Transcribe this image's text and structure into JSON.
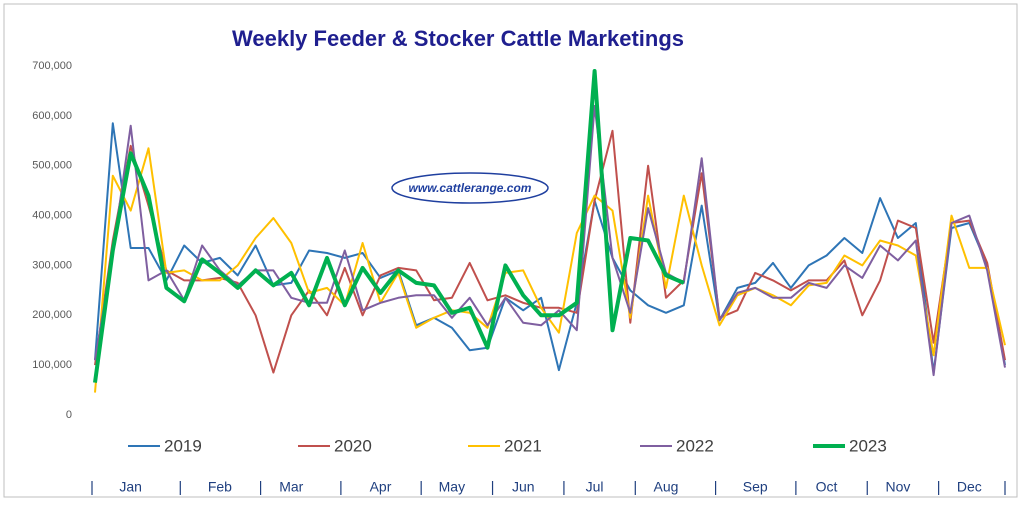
{
  "chart_data": {
    "type": "line",
    "title": "Weekly Feeder & Stocker Cattle Marketings",
    "watermark": "www.cattlerange.com",
    "categories": [
      null,
      null,
      "Jan",
      null,
      null,
      null,
      null,
      "Feb",
      null,
      null,
      null,
      "Mar",
      null,
      null,
      null,
      null,
      "Apr",
      null,
      null,
      null,
      "May",
      null,
      null,
      null,
      "Jun",
      null,
      null,
      null,
      "Jul",
      null,
      null,
      null,
      "Aug",
      null,
      null,
      null,
      null,
      "Sep",
      null,
      null,
      null,
      "Oct",
      null,
      null,
      null,
      "Nov",
      null,
      null,
      null,
      "Dec",
      null,
      null
    ],
    "ylim": [
      0,
      700000
    ],
    "yticks": [
      0,
      {
        "value": 100000,
        "label": "100,000"
      },
      {
        "value": 200000,
        "label": "200,000"
      },
      {
        "value": 300000,
        "label": "300,000"
      },
      {
        "value": 400000,
        "label": "400,000"
      },
      {
        "value": 500000,
        "label": "500,000"
      },
      {
        "value": 600000,
        "label": "600,000"
      },
      {
        "value": 700000,
        "label": "700,000"
      }
    ],
    "grid": false,
    "series": [
      {
        "name": "2019",
        "color": "#2e75b6",
        "values": [
          110000,
          585000,
          335000,
          335000,
          270000,
          340000,
          305000,
          315000,
          280000,
          340000,
          260000,
          265000,
          330000,
          325000,
          315000,
          325000,
          275000,
          290000,
          180000,
          195000,
          175000,
          130000,
          135000,
          235000,
          210000,
          235000,
          90000,
          225000,
          430000,
          315000,
          250000,
          220000,
          205000,
          220000,
          420000,
          190000,
          255000,
          265000,
          305000,
          255000,
          300000,
          320000,
          355000,
          325000,
          435000,
          355000,
          385000,
          85000,
          375000,
          385000,
          300000,
          100000
        ]
      },
      {
        "name": "2020",
        "color": "#c0504d",
        "values": [
          100000,
          350000,
          540000,
          420000,
          290000,
          270000,
          270000,
          275000,
          265000,
          200000,
          85000,
          200000,
          250000,
          200000,
          295000,
          200000,
          280000,
          295000,
          290000,
          230000,
          235000,
          305000,
          230000,
          240000,
          225000,
          215000,
          215000,
          205000,
          430000,
          570000,
          185000,
          500000,
          235000,
          270000,
          485000,
          195000,
          210000,
          285000,
          270000,
          250000,
          270000,
          270000,
          310000,
          200000,
          270000,
          390000,
          375000,
          145000,
          385000,
          390000,
          305000,
          110000
        ]
      },
      {
        "name": "2021",
        "color": "#ffc000",
        "values": [
          45000,
          480000,
          410000,
          535000,
          285000,
          290000,
          270000,
          270000,
          300000,
          355000,
          395000,
          345000,
          245000,
          255000,
          220000,
          345000,
          225000,
          285000,
          175000,
          195000,
          210000,
          205000,
          175000,
          285000,
          290000,
          215000,
          165000,
          365000,
          440000,
          410000,
          195000,
          440000,
          255000,
          440000,
          300000,
          180000,
          240000,
          255000,
          240000,
          220000,
          260000,
          265000,
          320000,
          300000,
          350000,
          340000,
          320000,
          120000,
          400000,
          295000,
          295000,
          140000
        ]
      },
      {
        "name": "2022",
        "color": "#7f5fa0",
        "values": [
          110000,
          325000,
          580000,
          270000,
          290000,
          230000,
          340000,
          290000,
          260000,
          290000,
          290000,
          235000,
          225000,
          225000,
          330000,
          210000,
          225000,
          235000,
          240000,
          240000,
          195000,
          235000,
          180000,
          235000,
          185000,
          180000,
          210000,
          170000,
          620000,
          315000,
          205000,
          415000,
          285000,
          265000,
          515000,
          190000,
          245000,
          255000,
          235000,
          235000,
          265000,
          255000,
          300000,
          275000,
          340000,
          310000,
          350000,
          80000,
          385000,
          400000,
          290000,
          95000
        ]
      },
      {
        "name": "2023",
        "color": "#00b050",
        "values": [
          65000,
          330000,
          525000,
          440000,
          255000,
          228000,
          312000,
          285000,
          255000,
          290000,
          260000,
          285000,
          220000,
          315000,
          220000,
          295000,
          245000,
          290000,
          265000,
          260000,
          205000,
          215000,
          135000,
          300000,
          240000,
          200000,
          200000,
          225000,
          690000,
          170000,
          355000,
          350000,
          280000,
          265000,
          null,
          null,
          null,
          null,
          null,
          null,
          null,
          null,
          null,
          null,
          null,
          null,
          null,
          null,
          null,
          null,
          null,
          null
        ]
      }
    ]
  }
}
